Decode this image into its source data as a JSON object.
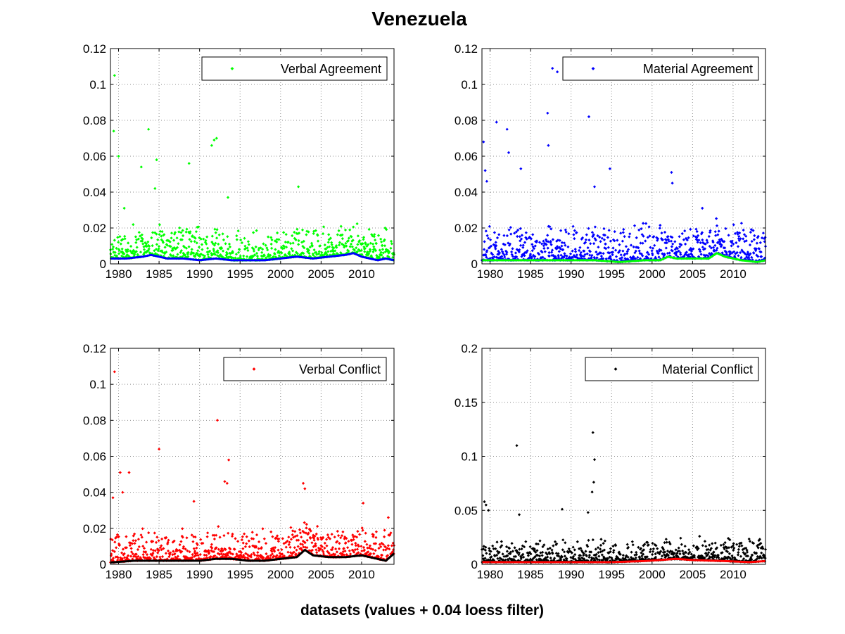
{
  "figure": {
    "title": "Venezuela",
    "xlabel": "datasets (values + 0.04 loess filter)"
  },
  "chart_data": [
    {
      "type": "scatter",
      "legend": "Verbal Agreement",
      "point_color": "#00ff00",
      "smooth_color": "#0000ff",
      "xlim": [
        1979,
        2014
      ],
      "xticks": [
        1980,
        1985,
        1990,
        1995,
        2000,
        2005,
        2010
      ],
      "ylim": [
        0,
        0.12
      ],
      "yticks": [
        "0",
        "0.02",
        "0.04",
        "0.06",
        "0.08",
        "0.1",
        "0.12"
      ],
      "grid": true,
      "legend_position": "top-right",
      "base_level": 0.004,
      "noise": 0.012,
      "outliers": [
        [
          1979.5,
          0.105
        ],
        [
          1979.4,
          0.074
        ],
        [
          1983.7,
          0.075
        ],
        [
          1984.7,
          0.058
        ],
        [
          1984.5,
          0.042
        ],
        [
          1988.7,
          0.056
        ],
        [
          1991.8,
          0.069
        ],
        [
          1992.1,
          0.07
        ],
        [
          1991.5,
          0.066
        ],
        [
          2002.2,
          0.043
        ],
        [
          1980.0,
          0.06
        ],
        [
          1982.8,
          0.054
        ],
        [
          1980.7,
          0.031
        ],
        [
          1993.5,
          0.037
        ]
      ],
      "smooth": [
        [
          1979,
          0.003
        ],
        [
          1981,
          0.003
        ],
        [
          1983,
          0.004
        ],
        [
          1984,
          0.005
        ],
        [
          1986,
          0.003
        ],
        [
          1988,
          0.003
        ],
        [
          1990,
          0.002
        ],
        [
          1992,
          0.003
        ],
        [
          1994,
          0.002
        ],
        [
          1996,
          0.002
        ],
        [
          1998,
          0.002
        ],
        [
          2000,
          0.003
        ],
        [
          2002,
          0.004
        ],
        [
          2004,
          0.003
        ],
        [
          2006,
          0.004
        ],
        [
          2008,
          0.005
        ],
        [
          2009,
          0.006
        ],
        [
          2010,
          0.004
        ],
        [
          2012,
          0.002
        ],
        [
          2013,
          0.003
        ],
        [
          2014,
          0.002
        ]
      ]
    },
    {
      "type": "scatter",
      "legend": "Material Agreement",
      "point_color": "#0000ff",
      "smooth_color": "#00ff00",
      "xlim": [
        1979,
        2014
      ],
      "xticks": [
        1980,
        1985,
        1990,
        1995,
        2000,
        2005,
        2010
      ],
      "ylim": [
        0,
        0.12
      ],
      "yticks": [
        "0",
        "0.02",
        "0.04",
        "0.06",
        "0.08",
        "0.1",
        "0.12"
      ],
      "grid": true,
      "legend_position": "top-right",
      "base_level": 0.004,
      "noise": 0.014,
      "outliers": [
        [
          1979.2,
          0.068
        ],
        [
          1980.8,
          0.079
        ],
        [
          1982.1,
          0.075
        ],
        [
          1982.3,
          0.062
        ],
        [
          1983.8,
          0.053
        ],
        [
          1987.1,
          0.084
        ],
        [
          1987.2,
          0.066
        ],
        [
          1987.7,
          0.109
        ],
        [
          1988.3,
          0.107
        ],
        [
          1992.2,
          0.082
        ],
        [
          1994.8,
          0.053
        ],
        [
          1992.9,
          0.043
        ],
        [
          2002.4,
          0.051
        ],
        [
          2002.5,
          0.045
        ],
        [
          2006.2,
          0.031
        ],
        [
          1979.4,
          0.052
        ],
        [
          1979.6,
          0.046
        ]
      ],
      "smooth": [
        [
          1979,
          0.002
        ],
        [
          1982,
          0.002
        ],
        [
          1985,
          0.002
        ],
        [
          1988,
          0.002
        ],
        [
          1991,
          0.002
        ],
        [
          1993,
          0.002
        ],
        [
          1996,
          0.001
        ],
        [
          1999,
          0.002
        ],
        [
          2001,
          0.002
        ],
        [
          2002,
          0.004
        ],
        [
          2003,
          0.003
        ],
        [
          2005,
          0.003
        ],
        [
          2007,
          0.003
        ],
        [
          2008,
          0.006
        ],
        [
          2009,
          0.004
        ],
        [
          2011,
          0.002
        ],
        [
          2013,
          0.001
        ],
        [
          2014,
          0.002
        ]
      ]
    },
    {
      "type": "scatter",
      "legend": "Verbal Conflict",
      "point_color": "#ff0000",
      "smooth_color": "#000000",
      "xlim": [
        1979,
        2014
      ],
      "xticks": [
        1980,
        1985,
        1990,
        1995,
        2000,
        2005,
        2010
      ],
      "ylim": [
        0,
        0.12
      ],
      "yticks": [
        "0",
        "0.02",
        "0.04",
        "0.06",
        "0.08",
        "0.1",
        "0.12"
      ],
      "grid": true,
      "legend_position": "top-right",
      "base_level": 0.003,
      "noise": 0.012,
      "outliers": [
        [
          1979.5,
          0.107
        ],
        [
          1980.2,
          0.051
        ],
        [
          1981.3,
          0.051
        ],
        [
          1985.0,
          0.064
        ],
        [
          1992.2,
          0.08
        ],
        [
          1993.1,
          0.046
        ],
        [
          1993.4,
          0.045
        ],
        [
          1993.6,
          0.058
        ],
        [
          2002.8,
          0.045
        ],
        [
          2003.0,
          0.042
        ],
        [
          2010.2,
          0.034
        ],
        [
          2013.3,
          0.026
        ],
        [
          1979.3,
          0.037
        ],
        [
          1980.5,
          0.04
        ],
        [
          1989.3,
          0.035
        ]
      ],
      "smooth": [
        [
          1979,
          0.001
        ],
        [
          1982,
          0.002
        ],
        [
          1985,
          0.002
        ],
        [
          1988,
          0.002
        ],
        [
          1990,
          0.002
        ],
        [
          1992,
          0.003
        ],
        [
          1994,
          0.003
        ],
        [
          1996,
          0.002
        ],
        [
          1998,
          0.002
        ],
        [
          2000,
          0.003
        ],
        [
          2002,
          0.004
        ],
        [
          2003,
          0.008
        ],
        [
          2004,
          0.005
        ],
        [
          2006,
          0.004
        ],
        [
          2008,
          0.004
        ],
        [
          2010,
          0.005
        ],
        [
          2011,
          0.004
        ],
        [
          2013,
          0.002
        ],
        [
          2014,
          0.006
        ]
      ]
    },
    {
      "type": "scatter",
      "legend": "Material Conflict",
      "point_color": "#000000",
      "smooth_color": "#ff0000",
      "xlim": [
        1979,
        2014
      ],
      "xticks": [
        1980,
        1985,
        1990,
        1995,
        2000,
        2005,
        2010
      ],
      "ylim": [
        0,
        0.2
      ],
      "yticks": [
        "0",
        "0.05",
        "0.1",
        "0.15",
        "0.2"
      ],
      "grid": true,
      "legend_position": "top-right",
      "base_level": 0.004,
      "noise": 0.014,
      "outliers": [
        [
          1979.3,
          0.058
        ],
        [
          1979.5,
          0.055
        ],
        [
          1983.3,
          0.11
        ],
        [
          1983.6,
          0.046
        ],
        [
          1988.9,
          0.051
        ],
        [
          1992.7,
          0.122
        ],
        [
          1992.9,
          0.097
        ],
        [
          1992.8,
          0.076
        ],
        [
          1992.6,
          0.067
        ],
        [
          1992.1,
          0.048
        ],
        [
          1979.8,
          0.05
        ]
      ],
      "smooth": [
        [
          1979,
          0.002
        ],
        [
          1983,
          0.002
        ],
        [
          1987,
          0.002
        ],
        [
          1991,
          0.002
        ],
        [
          1995,
          0.002
        ],
        [
          1999,
          0.003
        ],
        [
          2003,
          0.005
        ],
        [
          2005,
          0.004
        ],
        [
          2009,
          0.003
        ],
        [
          2012,
          0.002
        ],
        [
          2014,
          0.003
        ]
      ]
    }
  ]
}
